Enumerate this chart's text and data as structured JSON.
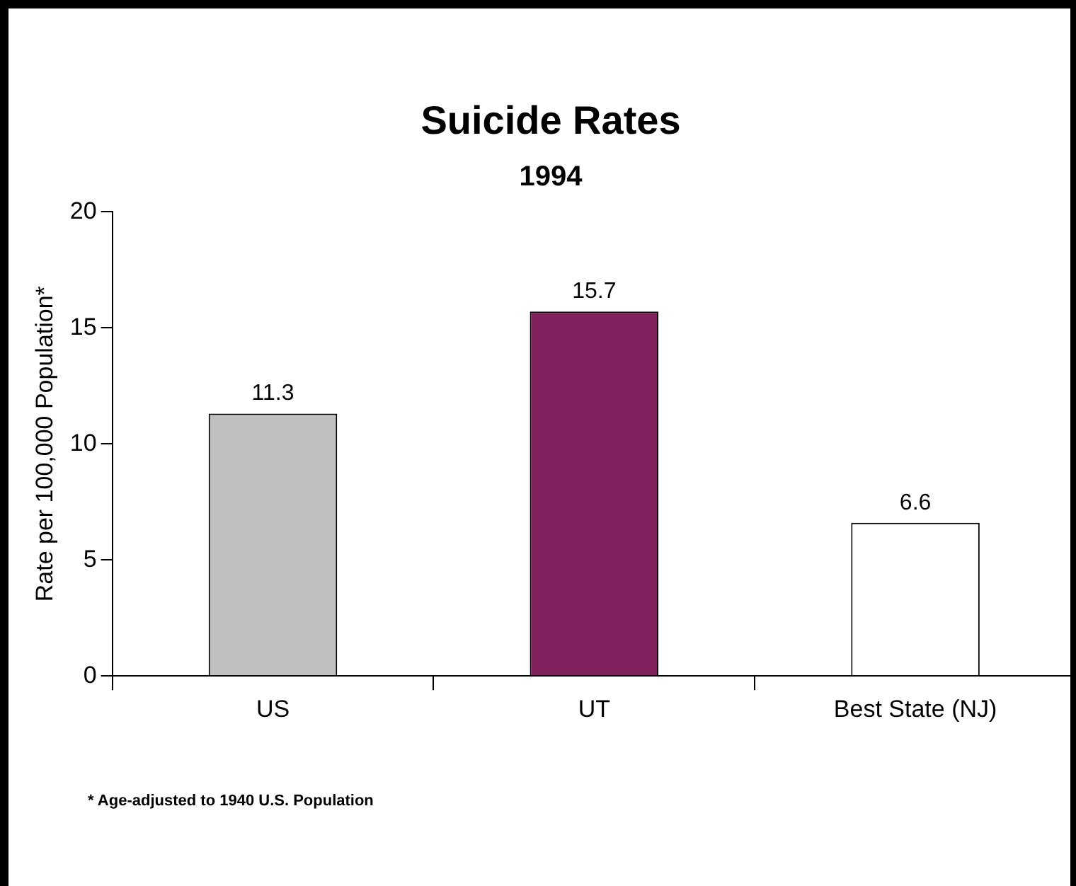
{
  "chart_data": {
    "type": "bar",
    "title": "Suicide Rates",
    "subtitle": "1994",
    "ylabel": "Rate per 100,000 Population*",
    "categories": [
      "US",
      "UT",
      "Best State (NJ)"
    ],
    "values": [
      11.3,
      15.7,
      6.6
    ],
    "colors": [
      "#c0c0c0",
      "#80205c",
      "#ffffff"
    ],
    "ylim": [
      0,
      20
    ],
    "yticks": [
      0,
      5,
      10,
      15,
      20
    ],
    "grid": false,
    "legend": false,
    "data_labels": true,
    "annotations": [
      "* Age-adjusted to 1940 U.S. Population"
    ]
  }
}
